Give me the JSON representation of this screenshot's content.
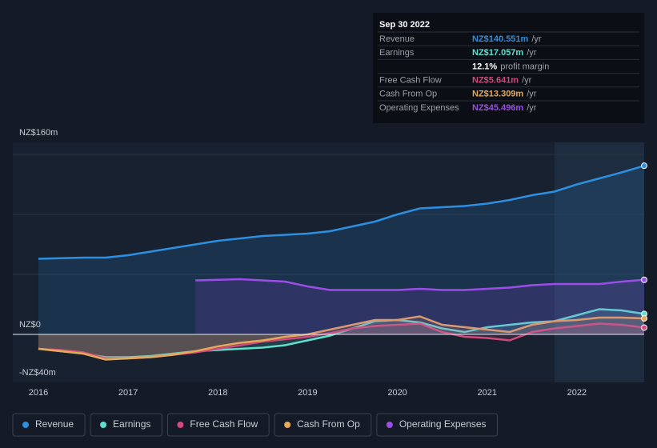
{
  "chart_data": {
    "type": "area-line",
    "x": [
      2016.0,
      2016.25,
      2016.5,
      2016.75,
      2017.0,
      2017.25,
      2017.5,
      2017.75,
      2018.0,
      2018.25,
      2018.5,
      2018.75,
      2019.0,
      2019.25,
      2019.5,
      2019.75,
      2020.0,
      2020.25,
      2020.5,
      2020.75,
      2021.0,
      2021.25,
      2021.5,
      2021.75,
      2022.0,
      2022.25,
      2022.5,
      2022.75
    ],
    "xlim": [
      2015.715,
      2022.75
    ],
    "xticks": [
      2016,
      2017,
      2018,
      2019,
      2020,
      2021,
      2022
    ],
    "ylim": [
      -40,
      160
    ],
    "yticks": [
      {
        "value": -40,
        "label": "-NZ$40m"
      },
      {
        "value": 0,
        "label": "NZ$0"
      },
      {
        "value": 160,
        "label": "NZ$160m"
      }
    ],
    "grid": [
      50,
      100,
      150
    ],
    "highlight_range": [
      2021.75,
      2022.75
    ],
    "series": [
      {
        "name": "Revenue",
        "color": "#2d8fe0",
        "values": [
          63,
          63.5,
          64,
          64,
          66,
          69,
          72,
          75,
          78,
          80,
          82,
          83,
          84,
          86,
          90,
          94,
          100,
          105,
          106,
          107,
          109,
          112,
          116,
          119,
          125,
          130,
          135,
          140.551
        ]
      },
      {
        "name": "Earnings",
        "color": "#5ee0cf",
        "values": [
          -12,
          -14,
          -16,
          -19,
          -19,
          -18,
          -16,
          -14,
          -13,
          -12,
          -11,
          -9,
          -5,
          -1,
          5,
          11,
          12,
          10,
          5,
          2,
          6,
          8,
          10,
          11,
          16,
          21,
          20,
          17.057
        ]
      },
      {
        "name": "Free Cash Flow",
        "color": "#d04a7c",
        "values": [
          -12,
          -13,
          -15,
          -20,
          -20,
          -19,
          -17,
          -15,
          -12,
          -9,
          -6,
          -4,
          -2,
          1,
          5,
          7,
          8,
          9,
          2,
          -2,
          -3,
          -5,
          2,
          5,
          7,
          9,
          8,
          5.641
        ]
      },
      {
        "name": "Cash From Op",
        "color": "#e7a85a",
        "values": [
          -12,
          -14,
          -16,
          -21,
          -20,
          -19,
          -17,
          -14,
          -10,
          -7,
          -5,
          -2,
          0,
          4,
          8,
          12,
          12,
          15,
          8,
          6,
          4,
          2,
          8,
          11,
          12,
          14,
          14,
          13.309
        ]
      },
      {
        "name": "Operating Expenses",
        "color": "#9b4de8",
        "values": [
          null,
          null,
          null,
          null,
          null,
          null,
          null,
          45,
          45.5,
          46,
          45,
          44,
          40,
          37,
          37,
          37,
          37,
          38,
          37,
          37,
          38,
          39,
          41,
          42,
          42,
          42,
          44,
          45.496
        ]
      }
    ],
    "tooltip": {
      "date": "Sep 30 2022",
      "rows": [
        {
          "label": "Revenue",
          "value": "NZ$140.551m",
          "unit": "/yr"
        },
        {
          "label": "Earnings",
          "value": "NZ$17.057m",
          "unit": "/yr"
        },
        {
          "label": "",
          "value": "12.1%",
          "unit": "profit margin"
        },
        {
          "label": "Free Cash Flow",
          "value": "NZ$5.641m",
          "unit": "/yr"
        },
        {
          "label": "Cash From Op",
          "value": "NZ$13.309m",
          "unit": "/yr"
        },
        {
          "label": "Operating Expenses",
          "value": "NZ$45.496m",
          "unit": "/yr"
        }
      ]
    }
  }
}
